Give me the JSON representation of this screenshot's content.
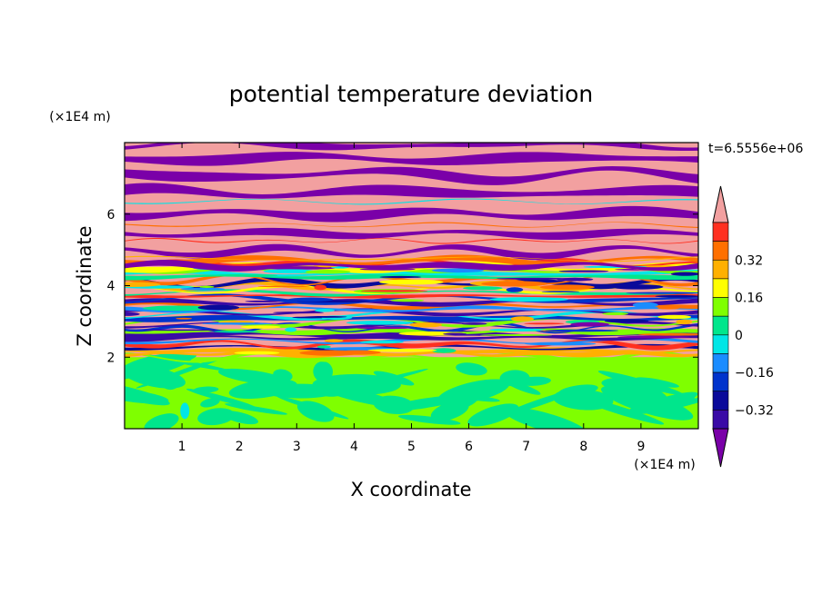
{
  "chart_data": {
    "type": "heatmap",
    "title": "potential temperature deviation",
    "xlabel": "X coordinate",
    "ylabel": "Z coordinate",
    "x_unit": "(×1E4 m)",
    "y_unit": "(×1E4 m)",
    "time_label": "t=6.5556e+06",
    "xlim": [
      0,
      10
    ],
    "ylim": [
      0,
      8
    ],
    "x_ticks": [
      "1",
      "2",
      "3",
      "4",
      "5",
      "6",
      "7",
      "8",
      "9"
    ],
    "y_ticks": [
      "2",
      "4",
      "6"
    ],
    "colorbar": {
      "labels": [
        "0.32",
        "0.16",
        "0",
        "-0.16",
        "-0.32"
      ],
      "labels_display": [
        "0.32",
        "0.16",
        "0",
        "−0.16",
        "−0.32"
      ],
      "levels": [
        -0.48,
        -0.4,
        -0.32,
        -0.24,
        -0.16,
        -0.08,
        0,
        0.08,
        0.16,
        0.24,
        0.32,
        0.4,
        0.48
      ],
      "colors": [
        "#7a00a8",
        "#3a0aa6",
        "#0a0a9a",
        "#0033cc",
        "#1a8cff",
        "#00e6e6",
        "#00e68c",
        "#7fff00",
        "#ffff00",
        "#ffb000",
        "#ff7000",
        "#ff3020",
        "#f2a0a0"
      ],
      "extend": "both"
    },
    "field_description_layers": [
      {
        "z_range": [
          0,
          2
        ],
        "pattern": "green/light-green turbulent mixed layer near 0"
      },
      {
        "z_range": [
          2,
          4.5
        ],
        "pattern": "strongly mixed multi-color layer (-0.48 to 0.48)"
      },
      {
        "z_range": [
          4.5,
          8
        ],
        "pattern": "alternating purple (<-0.48) and pink (>0.48) horizontal bands"
      }
    ]
  }
}
